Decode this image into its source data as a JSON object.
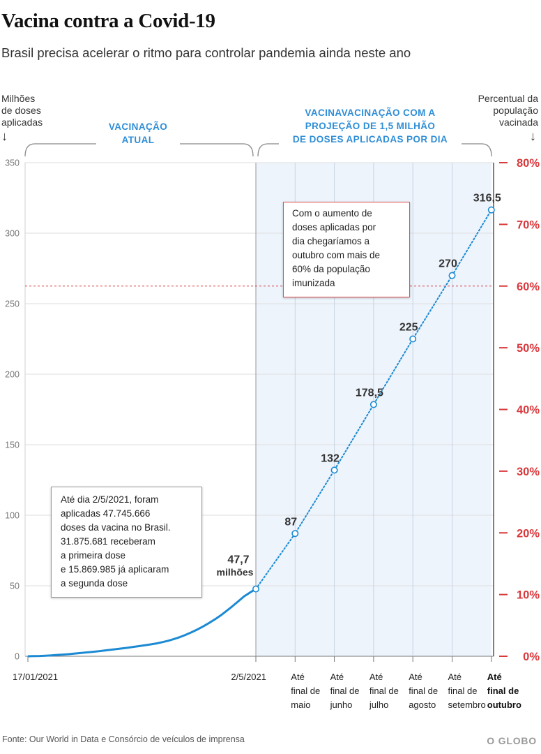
{
  "header": {
    "title": "Vacina contra a Covid-19",
    "subtitle": "Brasil precisa acelerar o ritmo para controlar pandemia ainda neste ano"
  },
  "axes": {
    "left_title": [
      "Milhões",
      "de doses",
      "aplicadas",
      "↓"
    ],
    "right_title": [
      "Percentual da",
      "população",
      "vacinada",
      "↓"
    ]
  },
  "sections": {
    "current": [
      "VACINAÇÃO",
      "ATUAL"
    ],
    "projection": [
      "VACINAVACINAÇÃO COM A",
      "PROJEÇÃO DE 1,5 MILHÃO",
      "DE DOSES APLICADAS POR DIA"
    ]
  },
  "notes": {
    "left": [
      "Até dia 2/5/2021, foram",
      "aplicadas 47.745.666",
      "doses da vacina no Brasil.",
      "31.875.681 receberam",
      "a primeira dose",
      "e 15.869.985 já aplicaram",
      "a segunda dose"
    ],
    "right": [
      "Com o aumento de",
      "doses aplicadas por",
      "dia chegaríamos a",
      "outubro com mais de",
      "60% da população",
      "imunizada"
    ]
  },
  "footer": {
    "source": "Fonte: Our World in Data e Consórcio de veículos de imprensa",
    "brand": "O GLOBO"
  },
  "chart_data": {
    "type": "line",
    "y_left": {
      "min": 0,
      "max": 350,
      "ticks": [
        "0",
        "50",
        "100",
        "150",
        "200",
        "250",
        "300",
        "350"
      ]
    },
    "y_right": {
      "ticks": [
        "0%",
        "10%",
        "20%",
        "30%",
        "40%",
        "50%",
        "60%",
        "70%",
        "80%"
      ],
      "reference": "60%"
    },
    "current_series": {
      "start_label": "17/01/2021",
      "end_label": "2/5/2021",
      "values": [
        0,
        0.1,
        0.2,
        0.4,
        0.6,
        0.9,
        1.2,
        1.5,
        1.9,
        2.3,
        2.7,
        3.1,
        3.5,
        4.0,
        4.5,
        5.0,
        5.5,
        6.0,
        6.6,
        7.2,
        7.8,
        8.4,
        9.1,
        10.0,
        11.0,
        12.2,
        13.6,
        15.2,
        17.0,
        19.0,
        21.2,
        23.6,
        26.2,
        29.0,
        32.2,
        35.5,
        39.0,
        42.5,
        45.2,
        47.7
      ],
      "end_value_label": [
        "47,7",
        "milhões"
      ]
    },
    "projection": {
      "categories": [
        [
          "2/5/2021"
        ],
        [
          "Até",
          "final de",
          "maio"
        ],
        [
          "Até",
          "final de",
          "junho"
        ],
        [
          "Até",
          "final de",
          "julho"
        ],
        [
          "Até",
          "final de",
          "agosto"
        ],
        [
          "Até",
          "final de",
          "setembro"
        ],
        [
          "Até",
          "final de",
          "outubro"
        ]
      ],
      "values": [
        47.7,
        87,
        132,
        178.5,
        225,
        270,
        316.5
      ],
      "labels": [
        "",
        "87",
        "132",
        "178,5",
        "225",
        "270",
        "316,5"
      ]
    },
    "colors": {
      "line": "#1b8ad3",
      "percent": "#d9383c",
      "projection_bg": "#edf4fc"
    }
  }
}
